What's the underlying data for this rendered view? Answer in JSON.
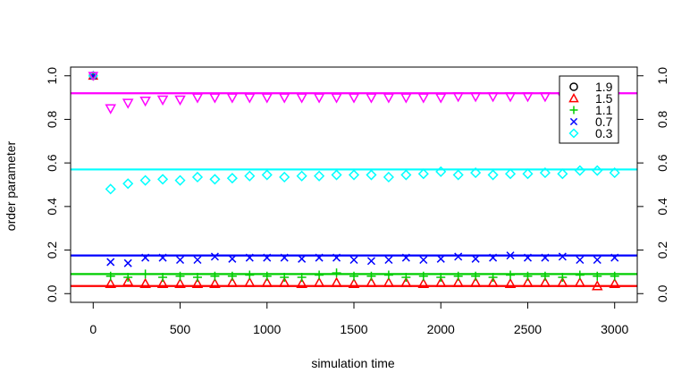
{
  "chart_data": {
    "type": "scatter",
    "title": "",
    "xlabel": "simulation time",
    "ylabel": "order parameter",
    "xlim": [
      -130,
      3130
    ],
    "ylim": [
      -0.04,
      1.04
    ],
    "xticks": [
      0,
      500,
      1000,
      1500,
      2000,
      2500,
      3000
    ],
    "xtick_labels": [
      "0",
      "500",
      "1000",
      "1500",
      "2000",
      "2500",
      "3000"
    ],
    "yticks": [
      0.0,
      0.2,
      0.4,
      0.6,
      0.8,
      1.0
    ],
    "ytick_labels": [
      "0.0",
      "0.2",
      "0.4",
      "0.6",
      "0.8",
      "1.0"
    ],
    "right_axis": true,
    "grid": false,
    "legend_position": "top-right",
    "x": [
      100,
      200,
      300,
      400,
      500,
      600,
      700,
      800,
      900,
      1000,
      1100,
      1200,
      1300,
      1400,
      1500,
      1600,
      1700,
      1800,
      1900,
      2000,
      2100,
      2200,
      2300,
      2400,
      2500,
      2600,
      2700,
      2800,
      2900,
      3000
    ],
    "initial_point": {
      "x": 0,
      "y": 1.0
    },
    "series": [
      {
        "name": "1.9",
        "marker": "circle",
        "color": "#000000",
        "values": [],
        "reference_line": null
      },
      {
        "name": "1.5",
        "marker": "triangle",
        "color": "#ff0000",
        "values": [
          0.045,
          0.055,
          0.045,
          0.045,
          0.045,
          0.045,
          0.045,
          0.05,
          0.05,
          0.05,
          0.05,
          0.045,
          0.05,
          0.05,
          0.045,
          0.05,
          0.05,
          0.05,
          0.045,
          0.05,
          0.05,
          0.05,
          0.05,
          0.045,
          0.05,
          0.05,
          0.05,
          0.05,
          0.035,
          0.045
        ],
        "reference_line": 0.035
      },
      {
        "name": "1.1",
        "marker": "plus",
        "color": "#00cd00",
        "values": [
          0.08,
          0.075,
          0.09,
          0.075,
          0.08,
          0.075,
          0.08,
          0.08,
          0.085,
          0.08,
          0.075,
          0.075,
          0.085,
          0.095,
          0.08,
          0.08,
          0.085,
          0.075,
          0.08,
          0.075,
          0.08,
          0.08,
          0.075,
          0.085,
          0.08,
          0.08,
          0.075,
          0.085,
          0.08,
          0.08
        ],
        "reference_line": 0.09
      },
      {
        "name": "0.7",
        "marker": "cross",
        "color": "#0000ff",
        "values": [
          0.145,
          0.14,
          0.165,
          0.165,
          0.155,
          0.155,
          0.17,
          0.16,
          0.165,
          0.165,
          0.165,
          0.16,
          0.165,
          0.165,
          0.155,
          0.15,
          0.155,
          0.165,
          0.155,
          0.16,
          0.17,
          0.16,
          0.165,
          0.175,
          0.165,
          0.165,
          0.17,
          0.155,
          0.155,
          0.165
        ],
        "reference_line": 0.175
      },
      {
        "name": "0.3",
        "marker": "diamond",
        "color": "#00ffff",
        "values": [
          0.48,
          0.505,
          0.52,
          0.525,
          0.52,
          0.535,
          0.525,
          0.53,
          0.54,
          0.545,
          0.535,
          0.54,
          0.54,
          0.545,
          0.545,
          0.545,
          0.535,
          0.545,
          0.55,
          0.56,
          0.545,
          0.555,
          0.545,
          0.55,
          0.55,
          0.555,
          0.55,
          0.565,
          0.565,
          0.555
        ],
        "reference_line": 0.57
      }
    ],
    "extra_series": [
      {
        "marker": "triangle-down",
        "color": "#ff00ff",
        "values": [
          0.85,
          0.875,
          0.885,
          0.89,
          0.89,
          0.9,
          0.9,
          0.9,
          0.9,
          0.9,
          0.9,
          0.9,
          0.9,
          0.9,
          0.9,
          0.9,
          0.9,
          0.9,
          0.9,
          0.9,
          0.905,
          0.905,
          0.905,
          0.905,
          0.905,
          0.905,
          0.905,
          0.905,
          0.905,
          0.905
        ],
        "reference_line": 0.92
      }
    ]
  }
}
